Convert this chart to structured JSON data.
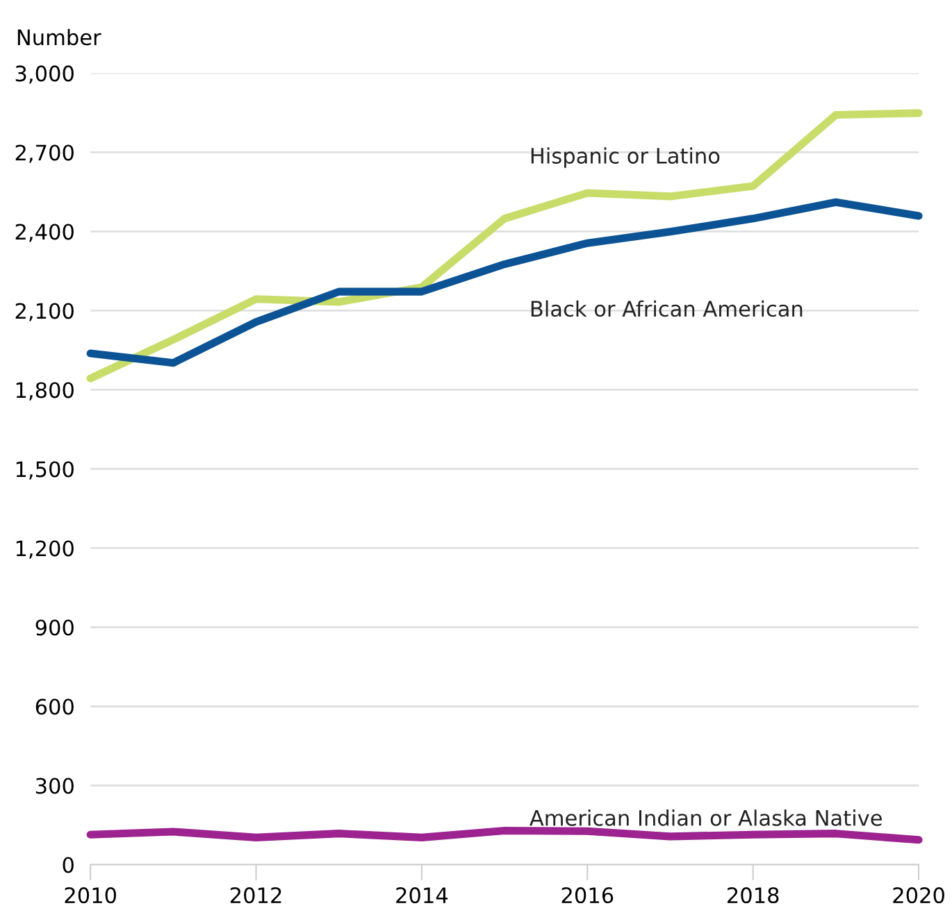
{
  "chart_data": {
    "type": "line",
    "ylabel": "Number",
    "x": [
      2010,
      2011,
      2012,
      2013,
      2014,
      2015,
      2016,
      2017,
      2018,
      2019,
      2020
    ],
    "series": [
      {
        "name": "Hispanic or Latino",
        "color": "#c8dc6a",
        "values": [
          1843,
          1990,
          2144,
          2133,
          2189,
          2449,
          2546,
          2533,
          2572,
          2842,
          2849
        ]
      },
      {
        "name": "Black or African American",
        "color": "#0b5394",
        "values": [
          1938,
          1902,
          2057,
          2172,
          2172,
          2276,
          2356,
          2399,
          2449,
          2511,
          2459
        ]
      },
      {
        "name": "American Indian or Alaska Native",
        "color": "#9c2390",
        "values": [
          114,
          125,
          103,
          118,
          103,
          129,
          127,
          107,
          114,
          118,
          94
        ]
      }
    ],
    "xlim": [
      2010,
      2020
    ],
    "xticks": [
      2010,
      2012,
      2014,
      2016,
      2018,
      2020
    ],
    "ylim": [
      0,
      3000
    ],
    "yticks": [
      0,
      {
        "value": 300,
        "label": "300"
      },
      {
        "value": 600,
        "label": "600"
      },
      {
        "value": 900,
        "label": "900"
      },
      {
        "value": 1200,
        "label": "1,200"
      },
      {
        "value": 1500,
        "label": "1,500"
      },
      {
        "value": 1800,
        "label": "1,800"
      },
      {
        "value": 2100,
        "label": "2,100"
      },
      {
        "value": 2400,
        "label": "2,400"
      },
      {
        "value": 2700,
        "label": "2,700"
      },
      {
        "value": 3000,
        "label": "3,000"
      }
    ],
    "grid": "y",
    "legend": false,
    "marker": "none",
    "line_style": "solid"
  }
}
